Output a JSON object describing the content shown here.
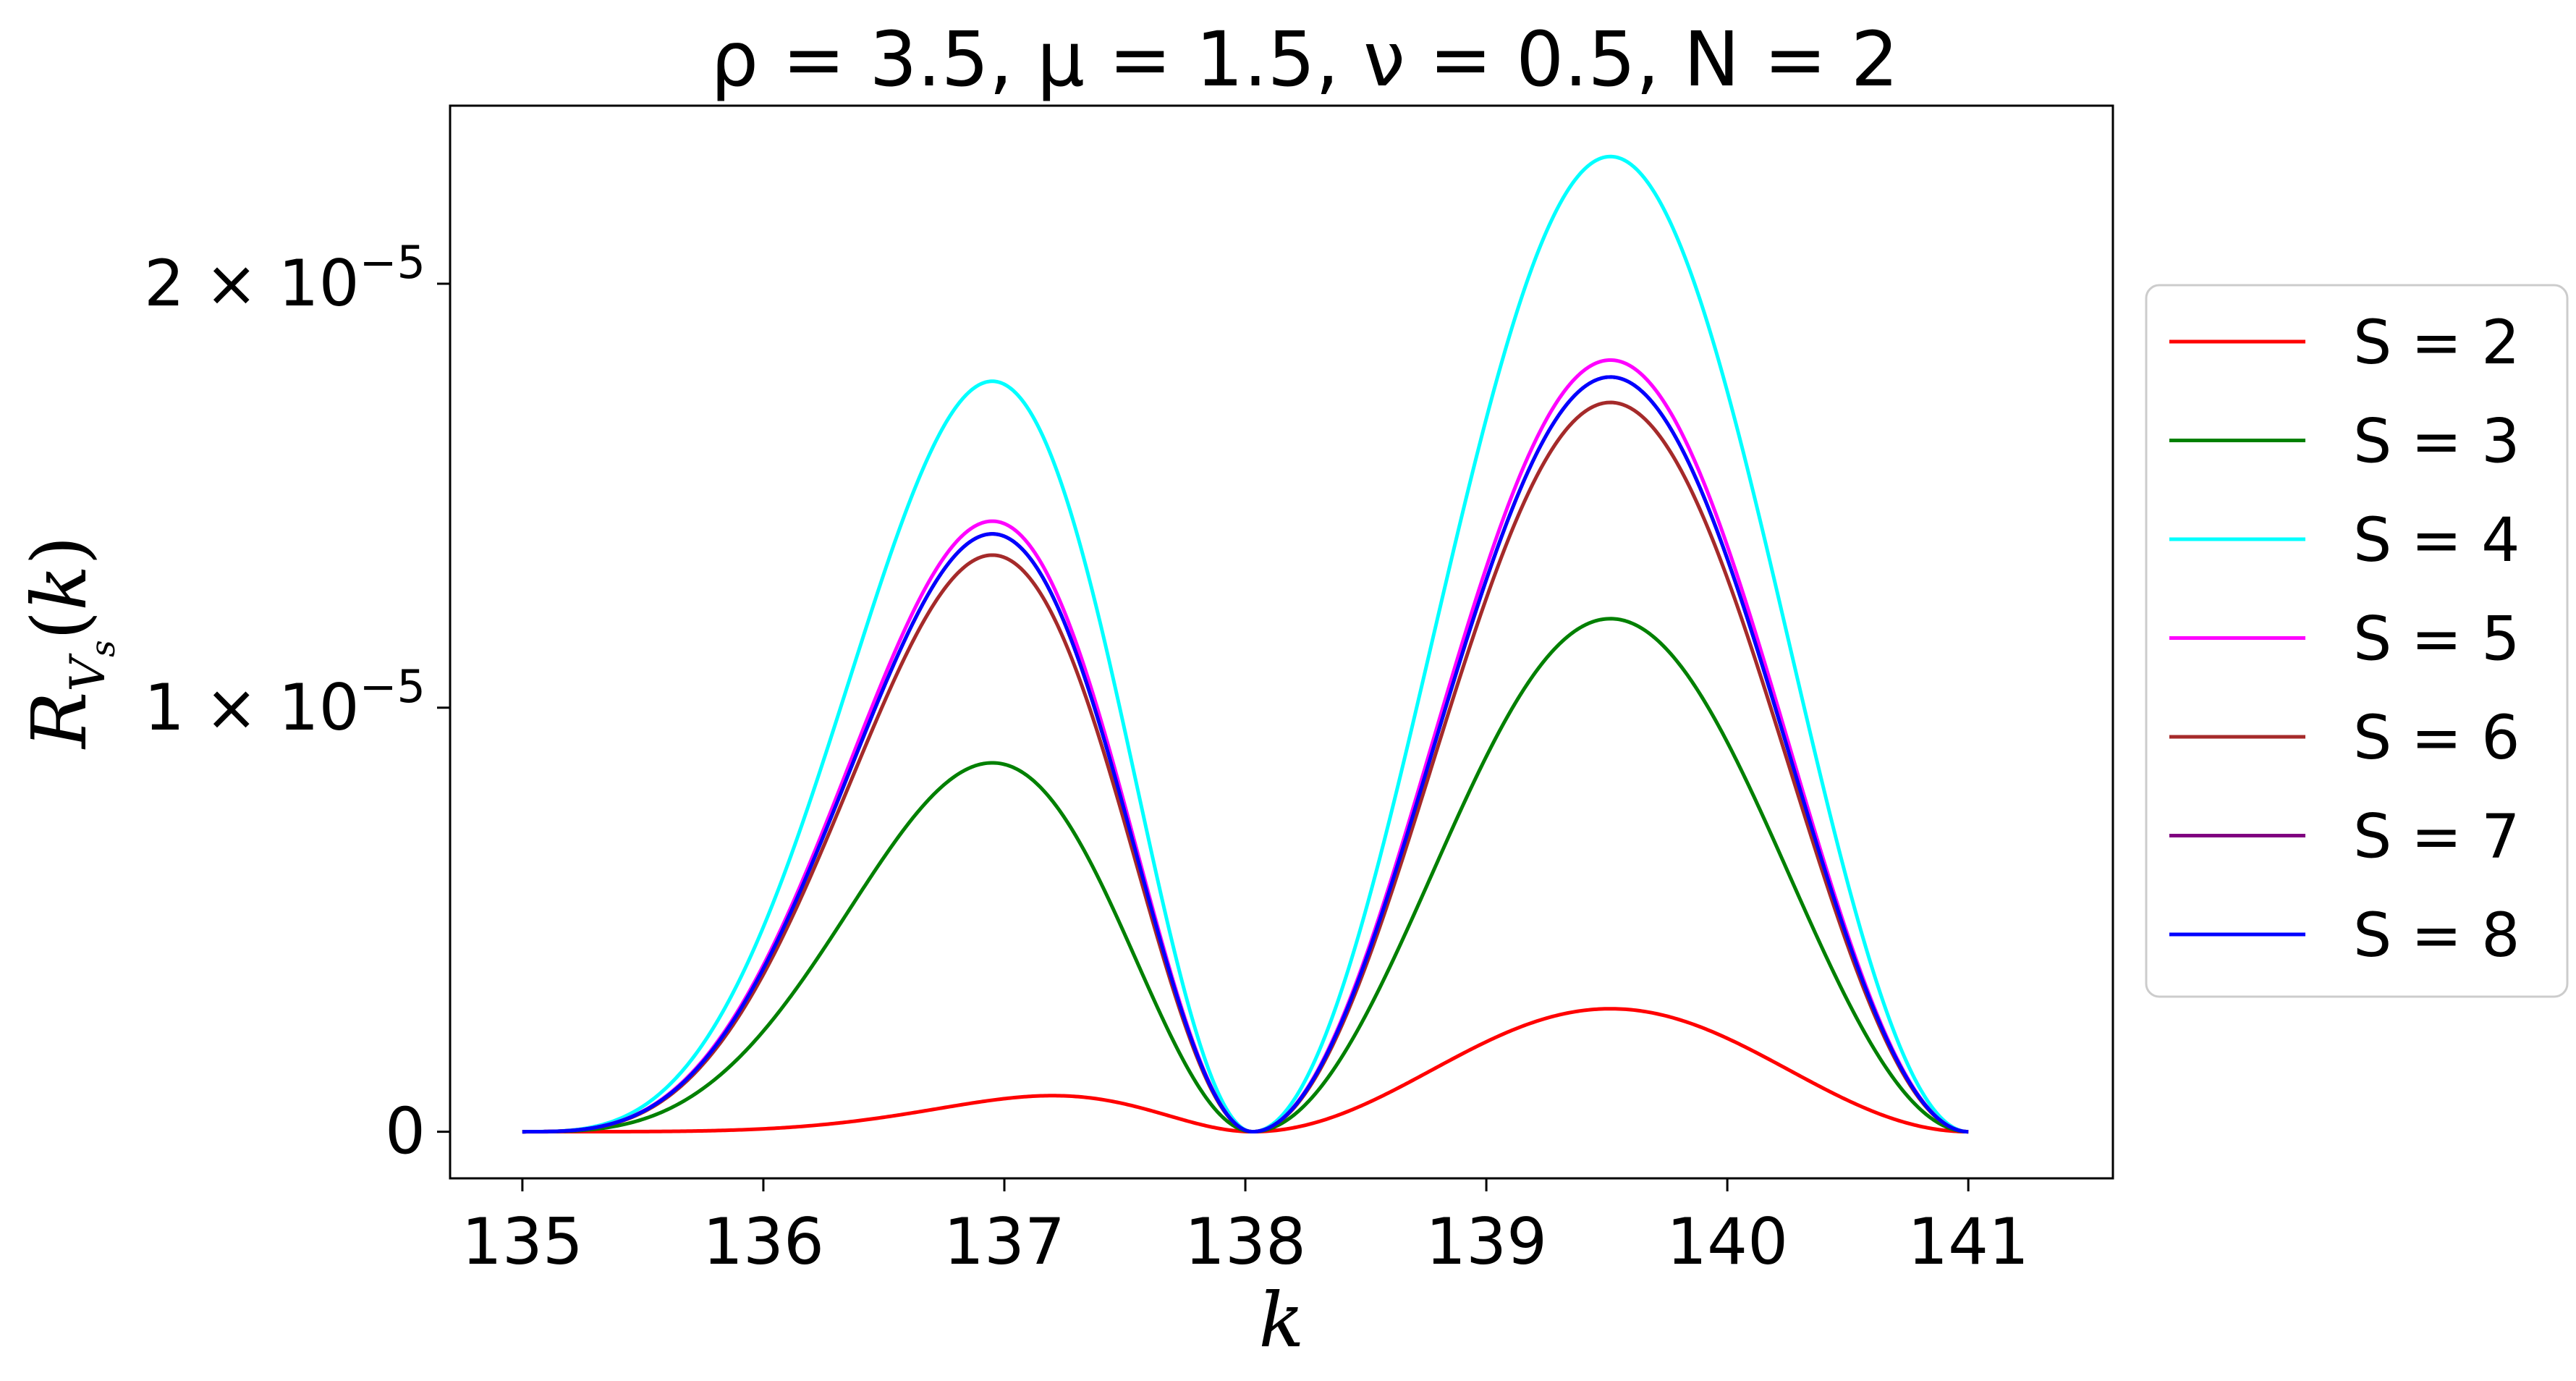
{
  "chart_data": {
    "type": "line",
    "title": "ρ = 3.5, μ = 1.5, ν = 0.5, N = 2",
    "xlabel": "k",
    "ylabel": "R_{V_s}(k)",
    "xlim": [
      134.7,
      141.6
    ],
    "ylim": [
      -1.1e-06,
      2.42e-05
    ],
    "x_ticks": [
      {
        "value": 135,
        "label": "135"
      },
      {
        "value": 136,
        "label": "136"
      },
      {
        "value": 137,
        "label": "137"
      },
      {
        "value": 138,
        "label": "138"
      },
      {
        "value": 139,
        "label": "139"
      },
      {
        "value": 140,
        "label": "140"
      },
      {
        "value": 141,
        "label": "141"
      }
    ],
    "y_ticks": [
      {
        "value": 0,
        "label": "0"
      },
      {
        "value": 1e-05,
        "label": "1 × 10^−5"
      },
      {
        "value": 2e-05,
        "label": "2 × 10^−5"
      }
    ],
    "grid": false,
    "legend_position": "outside-right",
    "x_range": [
      135,
      141
    ],
    "series": [
      {
        "name": "S = 2",
        "color": "#ff0000",
        "peaks": [
          {
            "k": 137.2,
            "value": 8.5e-07
          },
          {
            "k": 139.2,
            "value": 2.9e-06
          }
        ],
        "zero_at": 138.03
      },
      {
        "name": "S = 3",
        "color": "#008000",
        "peaks": [
          {
            "k": 136.95,
            "value": 8.7e-06
          },
          {
            "k": 139.2,
            "value": 1.21e-05
          }
        ],
        "zero_at": 138.03
      },
      {
        "name": "S = 4",
        "color": "#00ffff",
        "peaks": [
          {
            "k": 136.95,
            "value": 1.77e-05
          },
          {
            "k": 139.2,
            "value": 2.3e-05
          }
        ],
        "zero_at": 138.03
      },
      {
        "name": "S = 5",
        "color": "#ff00ff",
        "peaks": [
          {
            "k": 136.95,
            "value": 1.44e-05
          },
          {
            "k": 139.2,
            "value": 1.82e-05
          }
        ],
        "zero_at": 138.03
      },
      {
        "name": "S = 6",
        "color": "#a52a2a",
        "peaks": [
          {
            "k": 136.95,
            "value": 1.36e-05
          },
          {
            "k": 139.2,
            "value": 1.72e-05
          }
        ],
        "zero_at": 138.03
      },
      {
        "name": "S = 7",
        "color": "#800080",
        "peaks": [
          {
            "k": 136.95,
            "value": 1.41e-05
          },
          {
            "k": 139.2,
            "value": 1.78e-05
          }
        ],
        "zero_at": 138.03
      },
      {
        "name": "S = 8",
        "color": "#0000ff",
        "peaks": [
          {
            "k": 136.95,
            "value": 1.41e-05
          },
          {
            "k": 139.2,
            "value": 1.78e-05
          }
        ],
        "zero_at": 138.03
      }
    ]
  }
}
